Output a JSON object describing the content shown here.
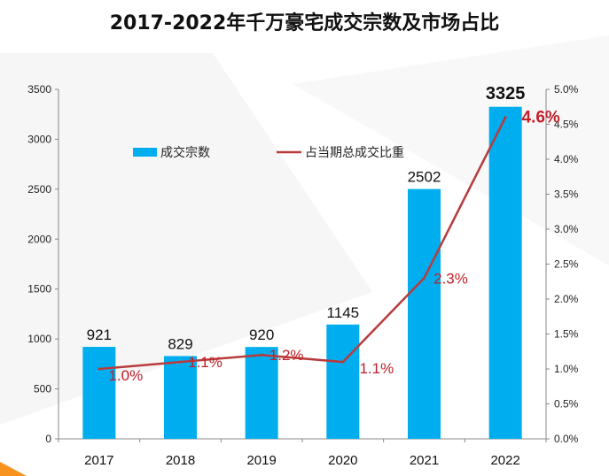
{
  "title": "2017-2022年千万豪宅成交宗数及市场占比",
  "colors": {
    "bar": "#00aeef",
    "line": "#b83b3c",
    "pct_label": "#c0202a",
    "axis": "#888888",
    "accent_orange": "#f7931e"
  },
  "chart_data": {
    "type": "bar",
    "title": "2017-2022年千万豪宅成交宗数及市场占比",
    "categories": [
      "2017",
      "2018",
      "2019",
      "2020",
      "2021",
      "2022"
    ],
    "series": [
      {
        "name": "成交宗数",
        "type": "bar",
        "axis": "left",
        "values": [
          921,
          829,
          920,
          1145,
          2502,
          3325
        ],
        "labels": [
          "921",
          "829",
          "920",
          "1145",
          "2502",
          "3325"
        ]
      },
      {
        "name": "占当期总成交比重",
        "type": "line",
        "axis": "right",
        "values": [
          1.0,
          1.1,
          1.2,
          1.1,
          2.3,
          4.6
        ],
        "labels": [
          "1.0%",
          "1.1%",
          "1.2%",
          "1.1%",
          "2.3%",
          "4.6%"
        ]
      }
    ],
    "y_left": {
      "range": [
        0,
        3500
      ],
      "ticks": [
        0,
        500,
        1000,
        1500,
        2000,
        2500,
        3000,
        3500
      ],
      "tick_labels": [
        "0",
        "500",
        "1000",
        "1500",
        "2000",
        "2500",
        "3000",
        "3500"
      ]
    },
    "y_right": {
      "range": [
        0,
        5.0
      ],
      "ticks": [
        0,
        0.5,
        1.0,
        1.5,
        2.0,
        2.5,
        3.0,
        3.5,
        4.0,
        4.5,
        5.0
      ],
      "tick_labels": [
        "0.0%",
        "0.5%",
        "1.0%",
        "1.5%",
        "2.0%",
        "2.5%",
        "3.0%",
        "3.5%",
        "4.0%",
        "4.5%",
        "5.0%"
      ]
    },
    "legend": {
      "position": "top-left",
      "items": [
        {
          "label": "成交宗数",
          "marker": "bar"
        },
        {
          "label": "占当期总成交比重",
          "marker": "line"
        }
      ]
    },
    "grid": false
  }
}
